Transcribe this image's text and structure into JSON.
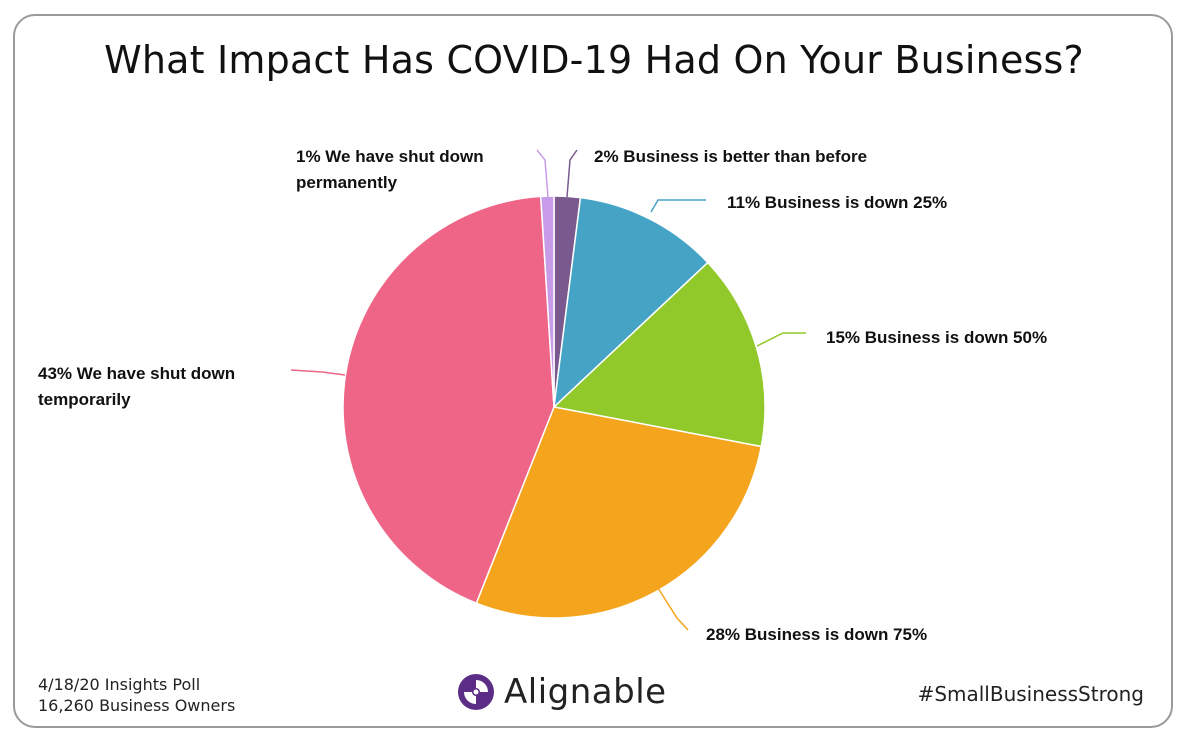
{
  "chart_data": {
    "type": "pie",
    "title": "What Impact Has COVID-19 Had On Your Business?",
    "slices": [
      {
        "label": "2% Business is better than before",
        "value": 2,
        "color": "#7a5a8e"
      },
      {
        "label": "11% Business is down 25%",
        "value": 11,
        "color": "#45a3c6"
      },
      {
        "label": "15% Business is down 50%",
        "value": 15,
        "color": "#92c92a"
      },
      {
        "label": "28% Business is down 75%",
        "value": 28,
        "color": "#f5a51d"
      },
      {
        "label": "43% We have shut down temporarily",
        "value": 43,
        "color": "#ef6587"
      },
      {
        "label": "1% We have shut down permanently",
        "value": 1,
        "color": "#c89be8"
      }
    ]
  },
  "footer": {
    "poll_line": "4/18/20 Insights Poll",
    "owners_line": "16,260 Business Owners",
    "logo_text": "Alignable",
    "hashtag": "#SmallBusinessStrong"
  }
}
